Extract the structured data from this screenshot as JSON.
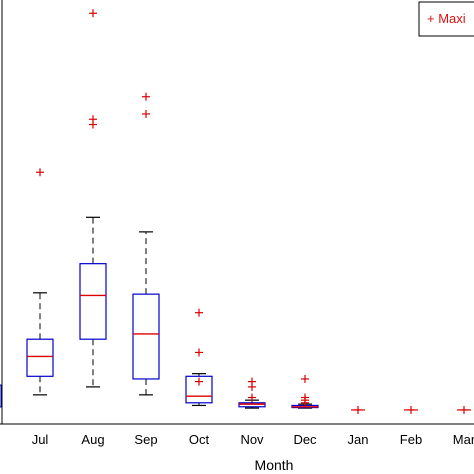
{
  "chart_data": {
    "type": "box",
    "xlabel": "Month",
    "ylabel": "",
    "categories": [
      "Jul",
      "Aug",
      "Sep",
      "Oct",
      "Nov",
      "Dec",
      "Jan",
      "Feb",
      "Mar"
    ],
    "boxes": [
      {
        "category": "Jul",
        "whisker_low": 6.0,
        "q1": 13.0,
        "median": 20.5,
        "q3": 27.0,
        "whisker_high": 44.5,
        "outliers": [
          90.0
        ]
      },
      {
        "category": "Aug",
        "whisker_low": 9.0,
        "q1": 27.0,
        "median": 43.5,
        "q3": 55.5,
        "whisker_high": 73.0,
        "outliers": [
          108.0,
          110.0,
          150.0
        ]
      },
      {
        "category": "Sep",
        "whisker_low": 6.0,
        "q1": 12.0,
        "median": 29.0,
        "q3": 44.0,
        "whisker_high": 67.5,
        "outliers": [
          112.0,
          118.5
        ]
      },
      {
        "category": "Oct",
        "whisker_low": 2.0,
        "q1": 3.0,
        "median": 5.5,
        "q3": 13.0,
        "whisker_high": 14.0,
        "outliers": [
          11.0,
          22.0,
          37.0
        ]
      },
      {
        "category": "Nov",
        "whisker_low": 1.0,
        "q1": 1.5,
        "median": 2.5,
        "q3": 3.0,
        "whisker_high": 4.0,
        "outliers": [
          5.0,
          9.0,
          11.0
        ]
      },
      {
        "category": "Dec",
        "whisker_low": 1.0,
        "q1": 1.2,
        "median": 1.5,
        "q3": 2.0,
        "whisker_high": 2.5,
        "outliers": [
          3.0,
          4.0,
          5.0,
          12.0
        ]
      },
      {
        "category": "Jan",
        "whisker_low": 0.3,
        "q1": 0.3,
        "median": 0.3,
        "q3": 0.3,
        "whisker_high": 0.3,
        "outliers": [
          0.3
        ]
      },
      {
        "category": "Feb",
        "whisker_low": 0.3,
        "q1": 0.3,
        "median": 0.3,
        "q3": 0.3,
        "whisker_high": 0.3,
        "outliers": [
          0.3
        ]
      },
      {
        "category": "Mar",
        "whisker_low": 0.3,
        "q1": 0.3,
        "median": 0.3,
        "q3": 0.3,
        "whisker_high": 0.3,
        "outliers": [
          0.3
        ]
      }
    ],
    "ylim": [
      -5,
      155
    ],
    "legend": {
      "label": "+ Maxi",
      "placement": "top-right"
    },
    "grid": false,
    "colors": {
      "box": "#0000cc",
      "median": "#dd0000",
      "whisker": "#000000",
      "outlier": "#dd0000",
      "axis": "#000000"
    }
  }
}
